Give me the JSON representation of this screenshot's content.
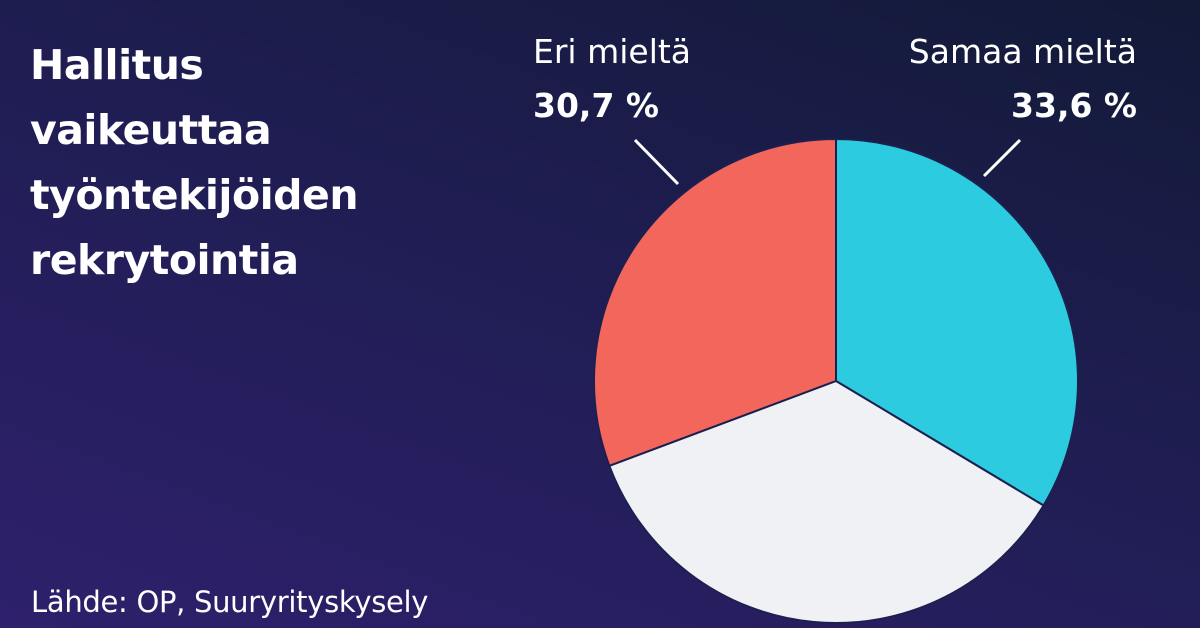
{
  "chart_data": {
    "type": "pie",
    "title": "Hallitus vaikeuttaa työntekijöiden rekrytointia",
    "title_lines": [
      "Hallitus",
      "vaikeuttaa",
      "työntekijöiden",
      "rekrytointia"
    ],
    "source": "Lähde: OP, Suuryrityskysely",
    "slices": [
      {
        "name": "Samaa mieltä",
        "value": 33.6,
        "value_label": "33,6 %",
        "color": "#2ccbdf",
        "labeled": true
      },
      {
        "name": "",
        "value": 35.7,
        "value_label": "",
        "color": "#f0f1f4",
        "labeled": false
      },
      {
        "name": "Eri mieltä",
        "value": 30.7,
        "value_label": "30,7 %",
        "color": "#f2665b",
        "labeled": true
      }
    ],
    "start_angle_deg": 0,
    "direction": "clockwise",
    "legend": "none"
  }
}
